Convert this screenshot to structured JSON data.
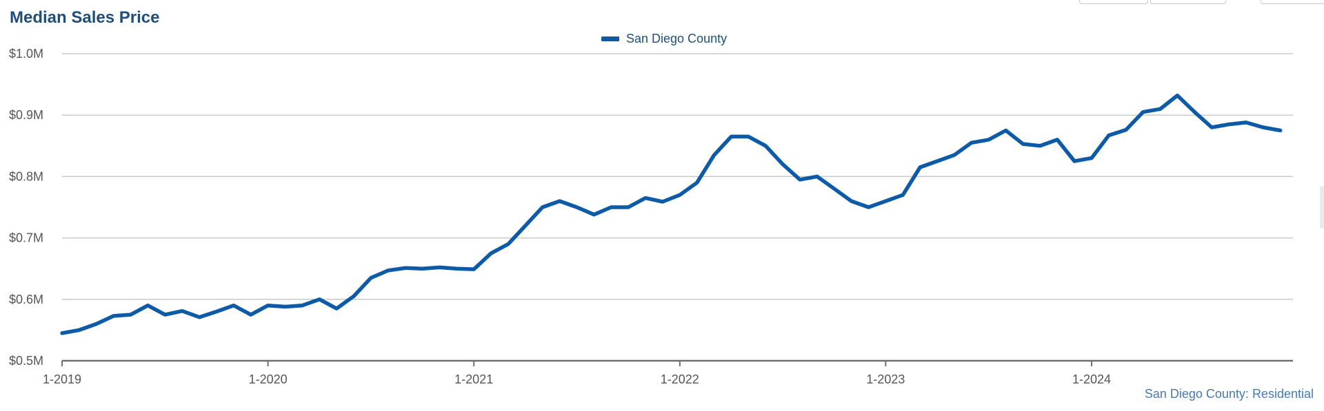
{
  "chart_data": {
    "type": "line",
    "title": "Median Sales Price",
    "xlabel": "",
    "ylabel": "",
    "ylim": [
      0.5,
      1.0
    ],
    "y_unit": "millions USD",
    "y_ticks": [
      "$0.5M",
      "$0.6M",
      "$0.7M",
      "$0.8M",
      "$0.9M",
      "$1.0M"
    ],
    "x_ticks": [
      "1-2019",
      "1-2020",
      "1-2021",
      "1-2022",
      "1-2023",
      "1-2024"
    ],
    "x_start": "1-2019",
    "x_end": "12-2024",
    "grid": true,
    "legend_position": "top-center",
    "series": [
      {
        "name": "San Diego County",
        "color": "#0d5aa7",
        "x": [
          "1-2019",
          "2-2019",
          "3-2019",
          "4-2019",
          "5-2019",
          "6-2019",
          "7-2019",
          "8-2019",
          "9-2019",
          "10-2019",
          "11-2019",
          "12-2019",
          "1-2020",
          "2-2020",
          "3-2020",
          "4-2020",
          "5-2020",
          "6-2020",
          "7-2020",
          "8-2020",
          "9-2020",
          "10-2020",
          "11-2020",
          "12-2020",
          "1-2021",
          "2-2021",
          "3-2021",
          "4-2021",
          "5-2021",
          "6-2021",
          "7-2021",
          "8-2021",
          "9-2021",
          "10-2021",
          "11-2021",
          "12-2021",
          "1-2022",
          "2-2022",
          "3-2022",
          "4-2022",
          "5-2022",
          "6-2022",
          "7-2022",
          "8-2022",
          "9-2022",
          "10-2022",
          "11-2022",
          "12-2022",
          "1-2023",
          "2-2023",
          "3-2023",
          "4-2023",
          "5-2023",
          "6-2023",
          "7-2023",
          "8-2023",
          "9-2023",
          "10-2023",
          "11-2023",
          "12-2023",
          "1-2024",
          "2-2024",
          "3-2024",
          "4-2024",
          "5-2024",
          "6-2024",
          "7-2024",
          "8-2024",
          "9-2024",
          "10-2024",
          "11-2024",
          "12-2024"
        ],
        "values": [
          0.545,
          0.55,
          0.56,
          0.573,
          0.575,
          0.59,
          0.575,
          0.581,
          0.571,
          0.58,
          0.59,
          0.575,
          0.59,
          0.588,
          0.59,
          0.6,
          0.585,
          0.605,
          0.635,
          0.647,
          0.651,
          0.65,
          0.652,
          0.65,
          0.649,
          0.675,
          0.69,
          0.72,
          0.75,
          0.76,
          0.75,
          0.738,
          0.75,
          0.75,
          0.765,
          0.759,
          0.77,
          0.79,
          0.835,
          0.865,
          0.865,
          0.85,
          0.82,
          0.795,
          0.8,
          0.78,
          0.76,
          0.75,
          0.76,
          0.77,
          0.815,
          0.825,
          0.835,
          0.855,
          0.86,
          0.875,
          0.853,
          0.85,
          0.86,
          0.825,
          0.83,
          0.867,
          0.876,
          0.905,
          0.91,
          0.932,
          0.905,
          0.88,
          0.885,
          0.888,
          0.88,
          0.875
        ]
      }
    ]
  },
  "footer": {
    "source": "San Diego County: Residential"
  }
}
